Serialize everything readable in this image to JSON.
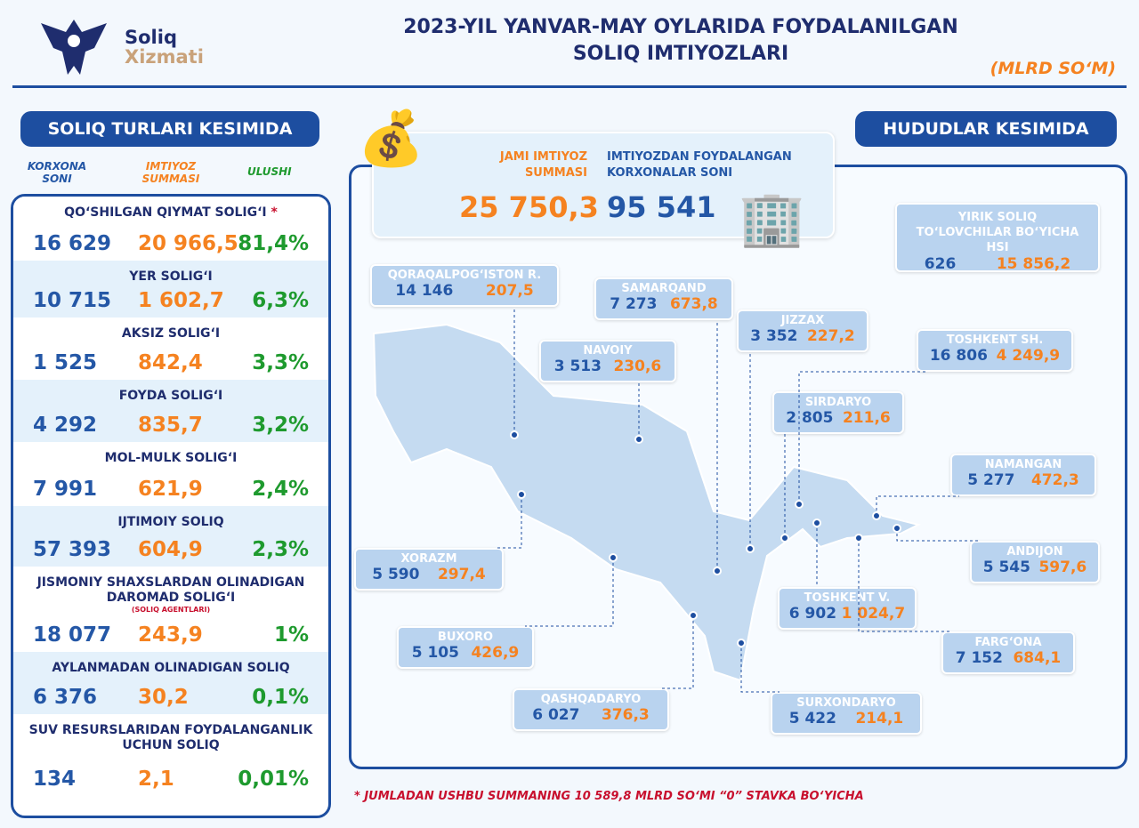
{
  "logo": {
    "line1": "Soliq",
    "line2": "Xizmati"
  },
  "title": {
    "line1": "2023-YIL YANVAR-MAY OYLARIDA FOYDALANILGAN",
    "line2": "SOLIQ IMTIYOZLARI",
    "unit": "(MLRD SO‘M)"
  },
  "left": {
    "header": "SOLIQ TURLARI KESIMIDA",
    "col1": "KORXONA SONI",
    "col2": "IMTIYOZ SUMMASI",
    "col3": "ULUSHI",
    "rows": [
      {
        "name": "QO‘SHILGAN QIYMAT SOLIG‘I",
        "star": "*",
        "count": "16 629",
        "sum": "20 966,5",
        "share": "81,4%"
      },
      {
        "name": "YER SOLIG‘I",
        "count": "10 715",
        "sum": "1 602,7",
        "share": "6,3%"
      },
      {
        "name": "AKSIZ SOLIG‘I",
        "count": "1 525",
        "sum": "842,4",
        "share": "3,3%"
      },
      {
        "name": "FOYDA SOLIG‘I",
        "count": "4 292",
        "sum": "835,7",
        "share": "3,2%"
      },
      {
        "name": "MOL-MULK SOLIG‘I",
        "count": "7 991",
        "sum": "621,9",
        "share": "2,4%"
      },
      {
        "name": "IJTIMOIY SOLIQ",
        "count": "57 393",
        "sum": "604,9",
        "share": "2,3%"
      },
      {
        "name": "JISMONIY SHAXSLARDAN OLINADIGAN DAROMAD SOLIG‘I",
        "note": "(SOLIQ AGENTLARI)",
        "count": "18 077",
        "sum": "243,9",
        "share": "1%"
      },
      {
        "name": "AYLANMADAN OLINADIGAN SOLIQ",
        "count": "6 376",
        "sum": "30,2",
        "share": "0,1%"
      },
      {
        "name": "SUV RESURSLARIDAN FOYDALANGANLIK UCHUN SOLIQ",
        "count": "134",
        "sum": "2,1",
        "share": "0,01%"
      }
    ]
  },
  "right": {
    "header": "HUDUDLAR KESIMIDA",
    "total_label": "JAMI IMTIYOZ SUMMASI",
    "total": "25 750,3",
    "firms_label": "IMTIYOZDAN FOYDALANGAN KORXONALAR SONI",
    "firms": "95 541",
    "large": {
      "name": "YIRIK SOLIQ TO‘LOVCHILAR BO‘YICHA HSI",
      "count": "626",
      "sum": "15 856,2"
    },
    "regions": [
      {
        "name": "QORAQALPOG‘ISTON R.",
        "count": "14 146",
        "sum": "207,5"
      },
      {
        "name": "SAMARQAND",
        "count": "7 273",
        "sum": "673,8"
      },
      {
        "name": "NAVOIY",
        "count": "3 513",
        "sum": "230,6"
      },
      {
        "name": "JIZZAX",
        "count": "3 352",
        "sum": "227,2"
      },
      {
        "name": "TOSHKENT SH.",
        "count": "16 806",
        "sum": "4 249,9"
      },
      {
        "name": "SIRDARYO",
        "count": "2 805",
        "sum": "211,6"
      },
      {
        "name": "NAMANGAN",
        "count": "5 277",
        "sum": "472,3"
      },
      {
        "name": "ANDIJON",
        "count": "5 545",
        "sum": "597,6"
      },
      {
        "name": "XORAZM",
        "count": "5 590",
        "sum": "297,4"
      },
      {
        "name": "TOSHKENT V.",
        "count": "6 902",
        "sum": "1 024,7"
      },
      {
        "name": "BUXORO",
        "count": "5 105",
        "sum": "426,9"
      },
      {
        "name": "FARG‘ONA",
        "count": "7 152",
        "sum": "684,1"
      },
      {
        "name": "QASHQADARYO",
        "count": "6 027",
        "sum": "376,3"
      },
      {
        "name": "SURXONDARYO",
        "count": "5 422",
        "sum": "214,1"
      }
    ]
  },
  "footnote": "* JUMLADAN USHBU SUMMANING 10 589,8 MLRD SO‘MI “0” STAVKA BO‘YICHA"
}
